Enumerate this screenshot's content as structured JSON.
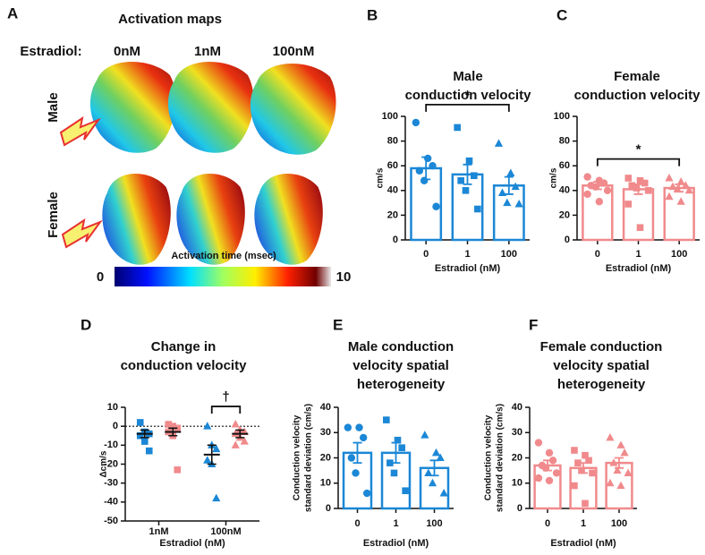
{
  "panel_a": {
    "label": "A",
    "title": "Activation maps",
    "estradiol_label": "Estradiol:",
    "columns": [
      "0nM",
      "1nM",
      "100nM"
    ],
    "rows": [
      "Male",
      "Female"
    ],
    "colorbar": {
      "label": "Activation time (msec)",
      "ticks": [
        0,
        10
      ]
    }
  },
  "chart_data": [
    {
      "type": "bar",
      "panel": "B",
      "title": [
        "Male",
        "conduction velocity"
      ],
      "ylabel": [
        "cm/s"
      ],
      "xlabel": "Estradiol (nM)",
      "categories": [
        "0",
        "1",
        "100"
      ],
      "values": [
        58,
        53,
        44
      ],
      "errors": [
        9,
        8,
        7
      ],
      "points": [
        [
          95,
          66,
          60,
          56,
          48,
          27
        ],
        [
          91,
          64,
          52,
          48,
          40,
          25
        ],
        [
          78,
          54,
          43,
          38,
          30,
          29
        ]
      ],
      "markers": [
        "circle",
        "square",
        "triangle"
      ],
      "color": "#1b87d6",
      "ylim": [
        0,
        100
      ],
      "yticks": [
        0,
        20,
        40,
        60,
        80,
        100
      ],
      "significance": {
        "label": "*",
        "from": 0,
        "to": 2
      }
    },
    {
      "type": "bar",
      "panel": "C",
      "title": [
        "Female",
        "conduction velocity"
      ],
      "ylabel": [
        "cm/s"
      ],
      "xlabel": "Estradiol (nM)",
      "categories": [
        "0",
        "1",
        "100"
      ],
      "values": [
        44,
        41,
        42
      ],
      "errors": [
        3,
        4,
        3
      ],
      "points": [
        [
          51,
          48,
          46,
          44,
          43,
          40,
          37,
          31
        ],
        [
          50,
          48,
          46,
          44,
          42,
          40,
          29,
          10
        ],
        [
          50,
          47,
          44,
          43,
          41,
          40,
          35,
          31
        ]
      ],
      "markers": [
        "circle",
        "square",
        "triangle"
      ],
      "color": "#f08a8c",
      "ylim": [
        0,
        100
      ],
      "yticks": [
        0,
        20,
        40,
        60,
        80,
        100
      ],
      "significance": {
        "label": "*",
        "from": 0,
        "to": 2
      }
    },
    {
      "type": "dot",
      "panel": "D",
      "title": [
        "Change in",
        "conduction velocity"
      ],
      "ylabel": [
        "Δcm/s"
      ],
      "xlabel": "Estradiol (nM)",
      "categories": [
        "1nM",
        "100nM"
      ],
      "markers": [
        "square",
        "triangle"
      ],
      "series": [
        {
          "color": "#1b87d6",
          "values": [
            -4,
            -15
          ],
          "errors": [
            2,
            5
          ],
          "points": [
            [
              2,
              -3,
              -4,
              -5,
              -8,
              -13
            ],
            [
              0,
              -10,
              -12,
              -18,
              -20,
              -38
            ]
          ]
        },
        {
          "color": "#f08a8c",
          "values": [
            -3,
            -4
          ],
          "errors": [
            2,
            2
          ],
          "points": [
            [
              1,
              0,
              -1,
              -3,
              -5,
              -23
            ],
            [
              1,
              -2,
              -3,
              -4,
              -6,
              -8,
              -10
            ]
          ]
        }
      ],
      "ylim": [
        -50,
        10
      ],
      "yticks": [
        -50,
        -40,
        -30,
        -20,
        -10,
        0,
        10
      ],
      "zero_line": true,
      "significance": {
        "label": "†",
        "category": 1,
        "series": [
          0,
          1
        ]
      }
    },
    {
      "type": "bar",
      "panel": "E",
      "title": [
        "Male conduction",
        "velocity spatial",
        "heterogeneity"
      ],
      "ylabel": [
        "Conduction velocity",
        "standard deviation (cm/s)"
      ],
      "xlabel": "Estradiol (nM)",
      "categories": [
        "0",
        "1",
        "100"
      ],
      "values": [
        22,
        22,
        16
      ],
      "errors": [
        4,
        4,
        3
      ],
      "points": [
        [
          32,
          32,
          28,
          20,
          14,
          6
        ],
        [
          35,
          27,
          24,
          18,
          14,
          7
        ],
        [
          29,
          22,
          20,
          14,
          10,
          6
        ]
      ],
      "markers": [
        "circle",
        "square",
        "triangle"
      ],
      "color": "#1b87d6",
      "ylim": [
        0,
        40
      ],
      "yticks": [
        0,
        10,
        20,
        30,
        40
      ]
    },
    {
      "type": "bar",
      "panel": "F",
      "title": [
        "Female conduction",
        "velocity spatial",
        "heterogeneity"
      ],
      "ylabel": [
        "Conduction velocity",
        "standard deviation (cm/s)"
      ],
      "xlabel": "Estradiol (nM)",
      "categories": [
        "0",
        "1",
        "100"
      ],
      "values": [
        17,
        16,
        18
      ],
      "errors": [
        2,
        2,
        2
      ],
      "points": [
        [
          26,
          22,
          19,
          17,
          16,
          14,
          12,
          11
        ],
        [
          23,
          21,
          19,
          18,
          15,
          14,
          9,
          2
        ],
        [
          28,
          25,
          22,
          18,
          15,
          14,
          10,
          9
        ]
      ],
      "markers": [
        "circle",
        "square",
        "triangle"
      ],
      "color": "#f08a8c",
      "ylim": [
        0,
        40
      ],
      "yticks": [
        0,
        10,
        20,
        30,
        40
      ]
    }
  ]
}
